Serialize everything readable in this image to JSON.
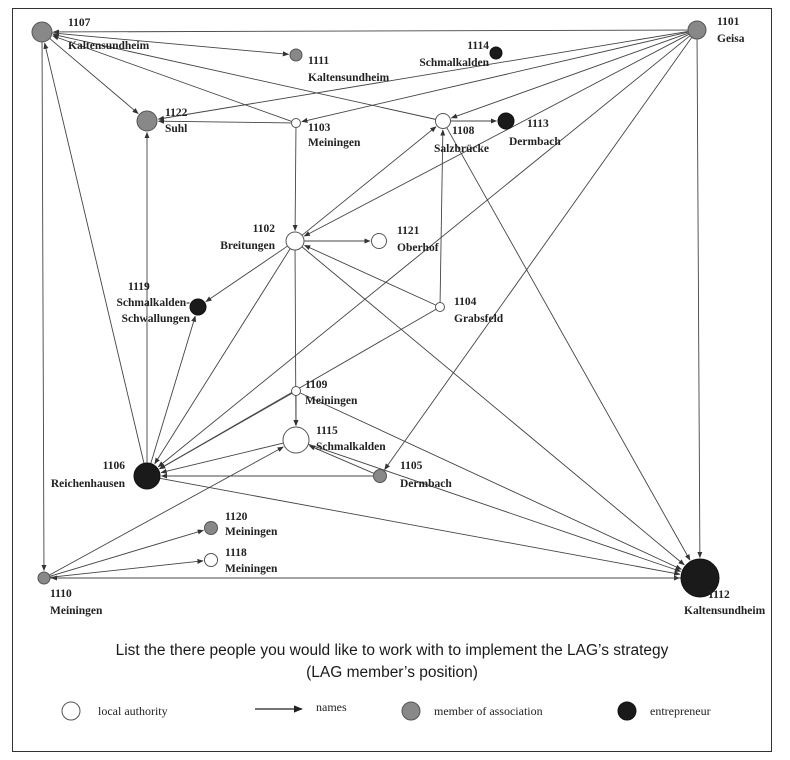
{
  "nodes": [
    {
      "id": "1107",
      "name": "Kaltensundheim",
      "kind": "member",
      "r": 10
    },
    {
      "id": "1101",
      "name": "Geisa",
      "kind": "member",
      "r": 9
    },
    {
      "id": "1111",
      "name": "Kaltensundheim",
      "kind": "member",
      "r": 6
    },
    {
      "id": "1114",
      "name": "Schmalkalden",
      "kind": "entrepreneur",
      "r": 6
    },
    {
      "id": "1122",
      "name": "Suhl",
      "kind": "member",
      "r": 10
    },
    {
      "id": "1103",
      "name": "Meiningen",
      "kind": "authority",
      "r": 4.5
    },
    {
      "id": "1108",
      "name": "Salzbrücke",
      "kind": "authority",
      "r": 7.5
    },
    {
      "id": "1113",
      "name": "Dermbach",
      "kind": "entrepreneur",
      "r": 8
    },
    {
      "id": "1102",
      "name": "Breitungen",
      "kind": "authority",
      "r": 9
    },
    {
      "id": "1121",
      "name": "Oberhof",
      "kind": "authority",
      "r": 7.5
    },
    {
      "id": "1119",
      "name": "Schmalkalden-Schwallungen",
      "kind": "entrepreneur",
      "r": 8
    },
    {
      "id": "1104",
      "name": "Grabsfeld",
      "kind": "authority",
      "r": 4.5
    },
    {
      "id": "1109",
      "name": "Meiningen",
      "kind": "authority",
      "r": 4.5
    },
    {
      "id": "1115",
      "name": "Schmalkalden",
      "kind": "authority",
      "r": 13
    },
    {
      "id": "1105",
      "name": "Dermbach",
      "kind": "member",
      "r": 6.5
    },
    {
      "id": "1106",
      "name": "Reichenhausen",
      "kind": "entrepreneur",
      "r": 13
    },
    {
      "id": "1120",
      "name": "Meiningen",
      "kind": "member",
      "r": 6.5
    },
    {
      "id": "1118",
      "name": "Meiningen",
      "kind": "authority",
      "r": 6.5
    },
    {
      "id": "1110",
      "name": "Meiningen",
      "kind": "member",
      "r": 6
    },
    {
      "id": "1112",
      "name": "Kaltensundheim",
      "kind": "entrepreneur",
      "r": 19
    }
  ],
  "edges": [
    [
      "1101",
      "1107"
    ],
    [
      "1101",
      "1122"
    ],
    [
      "1101",
      "1106"
    ],
    [
      "1101",
      "1112"
    ],
    [
      "1101",
      "1102"
    ],
    [
      "1101",
      "1105"
    ],
    [
      "1101",
      "1103"
    ],
    [
      "1101",
      "1108"
    ],
    [
      "1107",
      "1111"
    ],
    [
      "1107",
      "1122"
    ],
    [
      "1107",
      "1110"
    ],
    [
      "1103",
      "1107"
    ],
    [
      "1103",
      "1122"
    ],
    [
      "1103",
      "1102"
    ],
    [
      "1108",
      "1107"
    ],
    [
      "1108",
      "1113"
    ],
    [
      "1108",
      "1112"
    ],
    [
      "1102",
      "1108"
    ],
    [
      "1102",
      "1121"
    ],
    [
      "1102",
      "1119"
    ],
    [
      "1102",
      "1106"
    ],
    [
      "1102",
      "1112"
    ],
    [
      "1102",
      "1115"
    ],
    [
      "1104",
      "1108"
    ],
    [
      "1104",
      "1102"
    ],
    [
      "1104",
      "1106"
    ],
    [
      "1109",
      "1106"
    ],
    [
      "1109",
      "1115"
    ],
    [
      "1109",
      "1112"
    ],
    [
      "1115",
      "1106"
    ],
    [
      "1115",
      "1112"
    ],
    [
      "1105",
      "1106"
    ],
    [
      "1105",
      "1115"
    ],
    [
      "1106",
      "1107"
    ],
    [
      "1106",
      "1122"
    ],
    [
      "1106",
      "1119"
    ],
    [
      "1106",
      "1112"
    ],
    [
      "1110",
      "1120"
    ],
    [
      "1110",
      "1118"
    ],
    [
      "1110",
      "1115"
    ],
    [
      "1110",
      "1112"
    ],
    [
      "1112",
      "1110"
    ]
  ],
  "caption": {
    "line1": "List the there people you would like to work with to implement the LAG’s strategy",
    "line2": "(LAG member’s position)"
  },
  "legend": {
    "local_authority": "local authority",
    "names": "names",
    "member": "member of association",
    "entrepreneur": "entrepreneur"
  },
  "colors": {
    "authority": "#ffffff",
    "member": "#888888",
    "entrepreneur": "#1a1a1a",
    "edge": "#444444"
  }
}
